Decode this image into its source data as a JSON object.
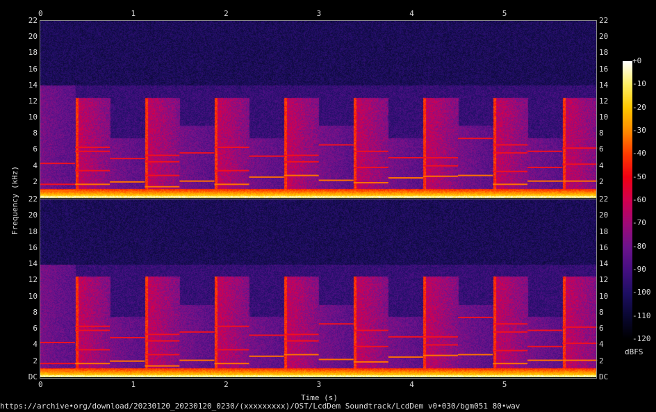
{
  "chart_data": {
    "type": "heatmap",
    "subtype": "spectrogram",
    "channels": 2,
    "xlabel": "Time (s)",
    "ylabel": "Frequency (kHz)",
    "xlim": [
      0,
      6
    ],
    "ylim": [
      0,
      22
    ],
    "x_ticks": [
      "0",
      "1",
      "2",
      "3",
      "4",
      "5"
    ],
    "y_ticks_upper": [
      "22",
      "20",
      "18",
      "16",
      "14",
      "12",
      "10",
      "8",
      "6",
      "4",
      "2"
    ],
    "y_ticks_lower": [
      "22",
      "20",
      "18",
      "16",
      "14",
      "12",
      "10",
      "8",
      "6",
      "4",
      "2",
      "DC"
    ],
    "colorbar": {
      "label": "dBFS",
      "range": [
        -120,
        0
      ],
      "ticks": [
        "+0",
        "-10",
        "-20",
        "-30",
        "-40",
        "-50",
        "-60",
        "-70",
        "-80",
        "-90",
        "-100",
        "-110",
        "-120"
      ],
      "colormap": [
        "#000000",
        "#0a0832",
        "#1e0f64",
        "#460f82",
        "#6e148c",
        "#a00a78",
        "#d20050",
        "#f00014",
        "#ff3c00",
        "#ff8c00",
        "#ffc800",
        "#fff064",
        "#ffffff"
      ]
    },
    "segments": [
      {
        "start": 0.0,
        "end": 0.375,
        "burst": false,
        "top": 14,
        "lines": [
          4.3,
          1.7,
          0.9
        ]
      },
      {
        "start": 0.375,
        "end": 0.75,
        "burst": true,
        "top": 12.5,
        "lines": [
          6.3,
          5.8,
          3.4,
          1.7
        ]
      },
      {
        "start": 0.75,
        "end": 1.125,
        "burst": false,
        "top": 7.5,
        "lines": [
          4.9,
          2.0
        ]
      },
      {
        "start": 1.125,
        "end": 1.5,
        "burst": true,
        "top": 12.5,
        "lines": [
          5.3,
          4.5,
          2.8,
          1.4
        ]
      },
      {
        "start": 1.5,
        "end": 1.875,
        "burst": false,
        "top": 9,
        "lines": [
          5.6,
          2.1
        ]
      },
      {
        "start": 1.875,
        "end": 2.25,
        "burst": true,
        "top": 12.5,
        "lines": [
          6.3,
          3.4,
          1.7
        ]
      },
      {
        "start": 2.25,
        "end": 2.625,
        "burst": false,
        "top": 7.5,
        "lines": [
          5.2,
          2.6
        ]
      },
      {
        "start": 2.625,
        "end": 3.0,
        "burst": true,
        "top": 12.5,
        "lines": [
          5.3,
          4.5,
          2.8
        ]
      },
      {
        "start": 3.0,
        "end": 3.375,
        "burst": false,
        "top": 9,
        "lines": [
          6.6,
          2.2
        ]
      },
      {
        "start": 3.375,
        "end": 3.75,
        "burst": true,
        "top": 12.5,
        "lines": [
          5.8,
          3.8,
          1.9
        ]
      },
      {
        "start": 3.75,
        "end": 4.125,
        "burst": false,
        "top": 7.5,
        "lines": [
          5.0,
          2.5
        ]
      },
      {
        "start": 4.125,
        "end": 4.5,
        "burst": true,
        "top": 12.5,
        "lines": [
          5.0,
          4.0,
          2.7
        ]
      },
      {
        "start": 4.5,
        "end": 4.875,
        "burst": false,
        "top": 9,
        "lines": [
          7.4,
          2.8
        ]
      },
      {
        "start": 4.875,
        "end": 5.25,
        "burst": true,
        "top": 12.5,
        "lines": [
          6.6,
          5.6,
          3.3,
          1.7
        ]
      },
      {
        "start": 5.25,
        "end": 5.625,
        "burst": false,
        "top": 7.5,
        "lines": [
          5.8,
          3.8,
          2.1
        ]
      },
      {
        "start": 5.625,
        "end": 6.0,
        "burst": true,
        "top": 12.5,
        "lines": [
          6.2,
          4.2,
          2.1
        ]
      }
    ]
  },
  "footer": {
    "source": "https://archive•org/download/20230120_20230120_0230/(xxxxxxxxx)/OST/LcdDem Soundtrack/LcdDem v0•030/bgm051 80•wav"
  }
}
